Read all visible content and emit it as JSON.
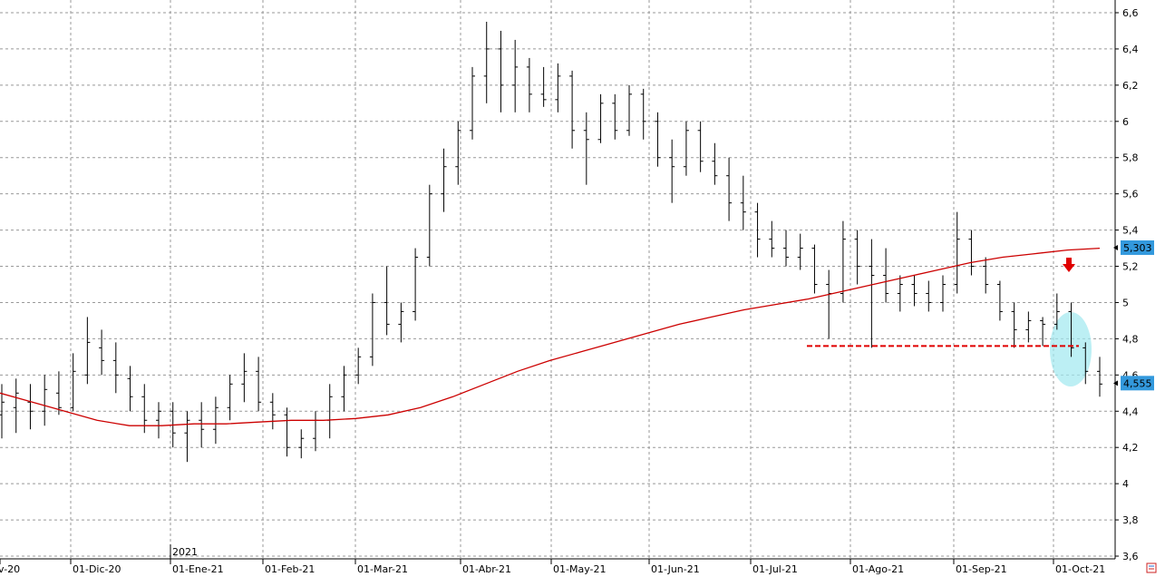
{
  "chart_data": {
    "type": "line",
    "subtype": "ohlc-bar",
    "title": "",
    "xlabel": "",
    "ylabel": "",
    "ylim": [
      3.6,
      6.6
    ],
    "y_ticks": [
      "3,6",
      "3,8",
      "4",
      "4,2",
      "4,4",
      "4,6",
      "4,8",
      "5",
      "5,2",
      "5,4",
      "5,6",
      "5,8",
      "6",
      "6,2",
      "6,4",
      "6,6"
    ],
    "x_ticks": [
      "v-20",
      "01-Dic-20",
      "01-Ene-21",
      "01-Feb-21",
      "01-Mar-21",
      "01-Abr-21",
      "01-May-21",
      "01-Jun-21",
      "01-Jul-21",
      "01-Ago-21",
      "01-Sep-21",
      "01-Oct-21"
    ],
    "year_label": "2021",
    "grid": true,
    "price_axis_side": "right",
    "series": [
      {
        "name": "",
        "kind": "ohlc",
        "color": "#000000",
        "points": [
          [
            4.38,
            4.55,
            4.25,
            4.45
          ],
          [
            4.42,
            4.58,
            4.28,
            4.5
          ],
          [
            4.45,
            4.55,
            4.3,
            4.4
          ],
          [
            4.4,
            4.6,
            4.32,
            4.52
          ],
          [
            4.5,
            4.62,
            4.38,
            4.42
          ],
          [
            4.42,
            4.72,
            4.4,
            4.62
          ],
          [
            4.6,
            4.92,
            4.55,
            4.78
          ],
          [
            4.75,
            4.85,
            4.6,
            4.68
          ],
          [
            4.68,
            4.78,
            4.5,
            4.6
          ],
          [
            4.58,
            4.65,
            4.4,
            4.48
          ],
          [
            4.48,
            4.55,
            4.28,
            4.35
          ],
          [
            4.35,
            4.45,
            4.25,
            4.4
          ],
          [
            4.4,
            4.45,
            4.2,
            4.28
          ],
          [
            4.28,
            4.4,
            4.12,
            4.35
          ],
          [
            4.35,
            4.45,
            4.2,
            4.3
          ],
          [
            4.3,
            4.48,
            4.22,
            4.42
          ],
          [
            4.42,
            4.6,
            4.35,
            4.55
          ],
          [
            4.55,
            4.72,
            4.45,
            4.62
          ],
          [
            4.62,
            4.7,
            4.4,
            4.45
          ],
          [
            4.45,
            4.5,
            4.3,
            4.38
          ],
          [
            4.38,
            4.42,
            4.15,
            4.2
          ],
          [
            4.2,
            4.3,
            4.14,
            4.25
          ],
          [
            4.25,
            4.4,
            4.18,
            4.35
          ],
          [
            4.35,
            4.55,
            4.25,
            4.48
          ],
          [
            4.48,
            4.65,
            4.4,
            4.6
          ],
          [
            4.6,
            4.75,
            4.55,
            4.7
          ],
          [
            4.7,
            5.05,
            4.65,
            5.0
          ],
          [
            5.0,
            5.2,
            4.82,
            4.88
          ],
          [
            4.88,
            5.0,
            4.78,
            4.95
          ],
          [
            4.95,
            5.3,
            4.9,
            5.25
          ],
          [
            5.25,
            5.65,
            5.2,
            5.6
          ],
          [
            5.6,
            5.85,
            5.5,
            5.75
          ],
          [
            5.75,
            6.0,
            5.65,
            5.95
          ],
          [
            5.95,
            6.3,
            5.9,
            6.25
          ],
          [
            6.25,
            6.55,
            6.1,
            6.4
          ],
          [
            6.4,
            6.5,
            6.05,
            6.2
          ],
          [
            6.2,
            6.45,
            6.05,
            6.3
          ],
          [
            6.3,
            6.35,
            6.05,
            6.15
          ],
          [
            6.15,
            6.3,
            6.08,
            6.12
          ],
          [
            6.12,
            6.32,
            6.05,
            6.25
          ],
          [
            6.25,
            6.28,
            5.85,
            5.95
          ],
          [
            5.95,
            6.05,
            5.65,
            5.9
          ],
          [
            5.9,
            6.15,
            5.88,
            6.1
          ],
          [
            6.1,
            6.15,
            5.9,
            5.95
          ],
          [
            5.95,
            6.2,
            5.92,
            6.15
          ],
          [
            6.15,
            6.18,
            5.9,
            6.0
          ],
          [
            6.0,
            6.05,
            5.75,
            5.8
          ],
          [
            5.8,
            5.9,
            5.55,
            5.75
          ],
          [
            5.75,
            6.0,
            5.7,
            5.95
          ],
          [
            5.95,
            6.0,
            5.72,
            5.78
          ],
          [
            5.78,
            5.88,
            5.65,
            5.7
          ],
          [
            5.7,
            5.8,
            5.45,
            5.55
          ],
          [
            5.55,
            5.7,
            5.4,
            5.5
          ],
          [
            5.5,
            5.55,
            5.25,
            5.35
          ],
          [
            5.35,
            5.45,
            5.25,
            5.3
          ],
          [
            5.3,
            5.4,
            5.2,
            5.25
          ],
          [
            5.25,
            5.38,
            5.18,
            5.3
          ],
          [
            5.3,
            5.32,
            5.05,
            5.1
          ],
          [
            5.1,
            5.18,
            4.8,
            5.05
          ],
          [
            5.05,
            5.45,
            5.0,
            5.35
          ],
          [
            5.35,
            5.4,
            5.1,
            5.2
          ],
          [
            5.2,
            5.35,
            4.75,
            5.15
          ],
          [
            5.15,
            5.3,
            5.0,
            5.05
          ],
          [
            5.05,
            5.15,
            4.95,
            5.1
          ],
          [
            5.1,
            5.15,
            4.98,
            5.05
          ],
          [
            5.05,
            5.12,
            4.95,
            5.0
          ],
          [
            5.0,
            5.15,
            4.95,
            5.1
          ],
          [
            5.1,
            5.5,
            5.05,
            5.35
          ],
          [
            5.35,
            5.4,
            5.15,
            5.2
          ],
          [
            5.2,
            5.25,
            5.05,
            5.1
          ],
          [
            5.1,
            5.12,
            4.9,
            4.95
          ],
          [
            4.95,
            5.0,
            4.75,
            4.85
          ],
          [
            4.85,
            4.95,
            4.78,
            4.9
          ],
          [
            4.9,
            4.92,
            4.76,
            4.88
          ],
          [
            4.88,
            5.05,
            4.85,
            4.95
          ],
          [
            4.95,
            5.0,
            4.7,
            4.75
          ],
          [
            4.75,
            4.78,
            4.55,
            4.62
          ],
          [
            4.62,
            4.7,
            4.48,
            4.55
          ]
        ]
      },
      {
        "name": "",
        "kind": "moving-average",
        "color": "#cc0000",
        "values": [
          4.5,
          4.45,
          4.4,
          4.35,
          4.32,
          4.32,
          4.33,
          4.33,
          4.34,
          4.35,
          4.35,
          4.36,
          4.38,
          4.42,
          4.48,
          4.55,
          4.62,
          4.68,
          4.73,
          4.78,
          4.83,
          4.88,
          4.92,
          4.96,
          4.99,
          5.02,
          5.06,
          5.1,
          5.14,
          5.18,
          5.22,
          5.25,
          5.27,
          5.29,
          5.3
        ]
      }
    ],
    "annotations": [
      {
        "type": "support-line",
        "style": "dashed",
        "color": "#e00000",
        "y": 4.76
      },
      {
        "type": "arrow-down",
        "color": "#e00000"
      },
      {
        "type": "highlight-ellipse",
        "color": "#9fe8f0"
      }
    ],
    "price_badges": [
      {
        "label": "5,303",
        "value": 5.303,
        "color": "#3399dd"
      },
      {
        "label": "4,555",
        "value": 4.555,
        "color": "#3399dd"
      }
    ]
  }
}
